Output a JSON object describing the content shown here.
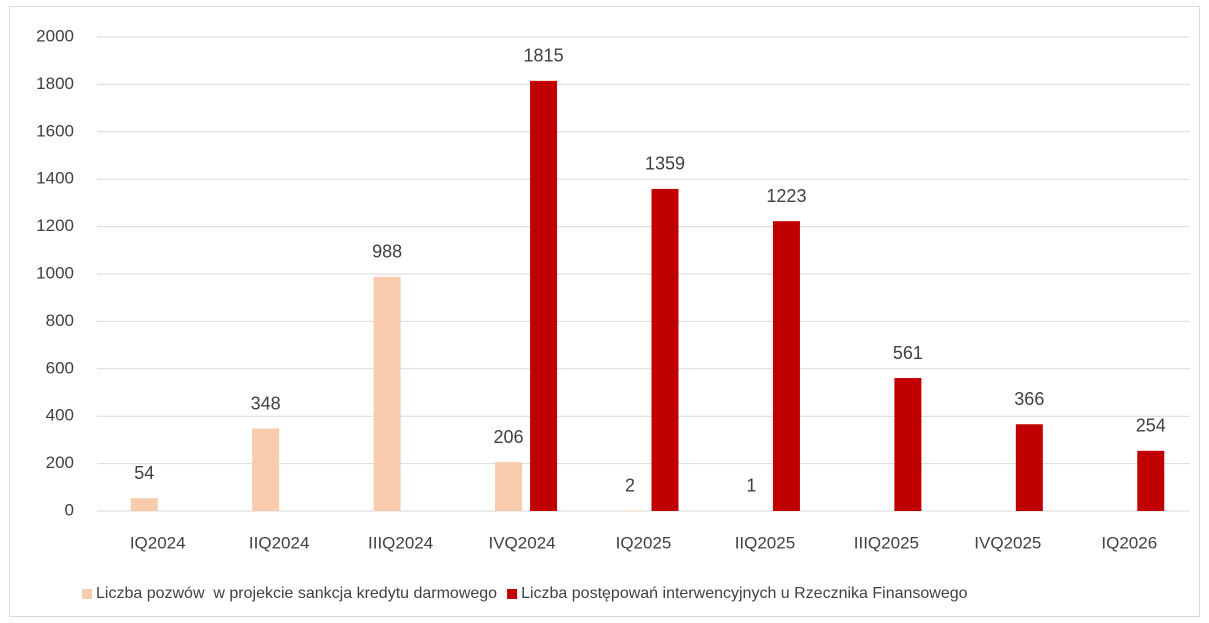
{
  "chart_data": {
    "type": "bar",
    "categories": [
      "IQ2024",
      "IIQ2024",
      "IIIQ2024",
      "IVQ2024",
      "IQ2025",
      "IIQ2025",
      "IIIQ2025",
      "IVQ2025",
      "IQ2026"
    ],
    "series": [
      {
        "name": "Liczba pozwów  w projekcie sankcja kredytu darmowego",
        "color": "#f8cbad",
        "values": [
          54,
          348,
          988,
          206,
          2,
          1,
          null,
          null,
          null
        ]
      },
      {
        "name": "Liczba postępowań interwencyjnych u Rzecznika Finansowego",
        "color": "#c00000",
        "values": [
          null,
          null,
          null,
          1815,
          1359,
          1223,
          561,
          366,
          254
        ]
      }
    ],
    "ylim": [
      0,
      2000
    ],
    "yticks": [
      0,
      200,
      400,
      600,
      800,
      1000,
      1200,
      1400,
      1600,
      1800,
      2000
    ],
    "grid": true,
    "legend": "bottom"
  }
}
